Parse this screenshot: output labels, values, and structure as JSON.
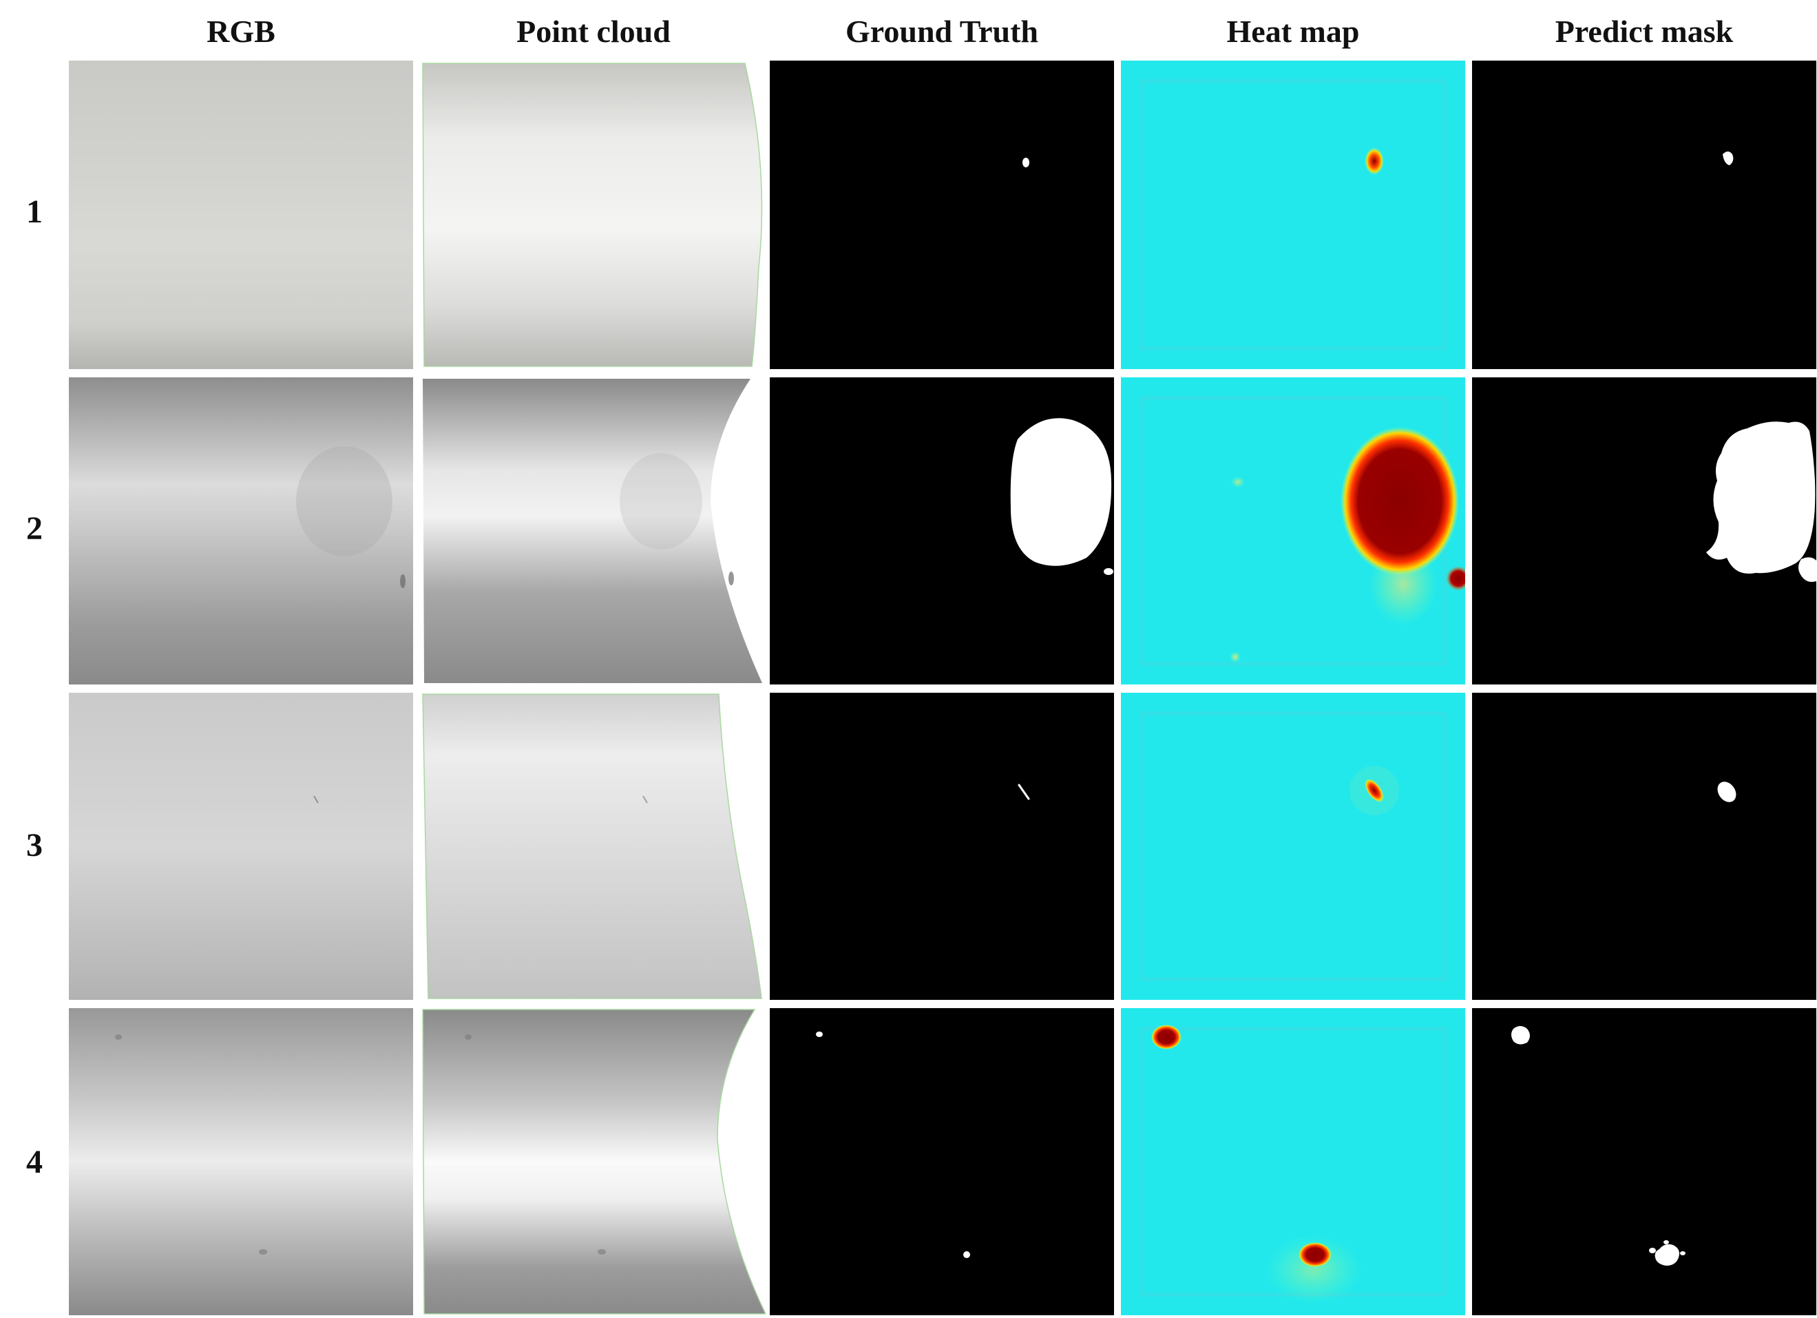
{
  "columns": [
    {
      "label": "RGB"
    },
    {
      "label": "Point cloud"
    },
    {
      "label": "Ground Truth"
    },
    {
      "label": "Heat map"
    },
    {
      "label": "Predict mask"
    }
  ],
  "rows": [
    {
      "label": "1"
    },
    {
      "label": "2"
    },
    {
      "label": "3"
    },
    {
      "label": "4"
    }
  ],
  "colors": {
    "heat_background": "#22e8ec",
    "heat_hot": "#8b0000",
    "mask_foreground": "#ffffff",
    "mask_background": "#000000",
    "surface_gray": "#bdbdbd"
  }
}
